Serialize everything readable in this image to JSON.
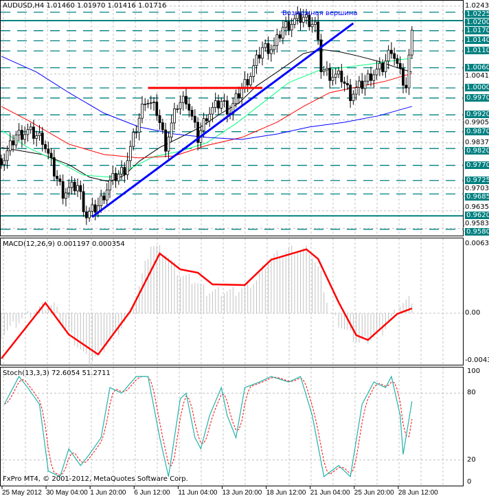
{
  "header": {
    "symbol_line": "AUDUSD,H4  1.01460 1.01970 1.01416 1.01716"
  },
  "annotation": "Возможная вершина",
  "copyright": "FxPro MT4, © 2001-2012, MetaQuotes Software Corp.",
  "colors": {
    "level_line": "#008080",
    "candle": "#000000",
    "trendline": "#0000ff",
    "resistance": "#ff0000",
    "ma_black": "#000000",
    "ma_green": "#00ff7f",
    "ma_red": "#ff0000",
    "ma_blue": "#0000ff",
    "macd_hist": "#c0c0c0",
    "macd_signal": "#ff0000",
    "stoch_main": "#20b2aa",
    "stoch_signal": "#ff0000"
  },
  "chart_data": [
    {
      "type": "candlestick",
      "title": "AUDUSD,H4",
      "ylim": [
        0.9583,
        1.0243
      ],
      "x_tick_labels": [
        "25 May 2012",
        "30 May 04:00",
        "1 Jun 20:00",
        "6 Jun 12:00",
        "11 Jun 04:00",
        "13 Jun 20:00",
        "18 Jun 12:00",
        "21 Jun 04:00",
        "25 Jun 20:00",
        "28 Jun 12:00"
      ],
      "y_tick_labels": [
        "1.02430",
        "1.00410",
        "0.99050",
        "0.98370",
        "0.97030",
        "0.96350",
        "0.95830"
      ],
      "level_labels": [
        {
          "text": "1.02250",
          "value": 1.0225,
          "style": "dashed"
        },
        {
          "text": "1.02000",
          "value": 1.02,
          "style": "solid"
        },
        {
          "text": "1.01700",
          "value": 1.017,
          "style": "dashed"
        },
        {
          "text": "1.01400",
          "value": 1.014,
          "style": "dashed"
        },
        {
          "text": "1.01100",
          "value": 1.011,
          "style": "dashed"
        },
        {
          "text": "1.00600",
          "value": 1.006,
          "style": "dashed"
        },
        {
          "text": "1.00000",
          "value": 1.0,
          "style": "dashed"
        },
        {
          "text": "0.99700",
          "value": 0.997,
          "style": "dashed"
        },
        {
          "text": "0.99200",
          "value": 0.992,
          "style": "dashed"
        },
        {
          "text": "0.98700",
          "value": 0.987,
          "style": "dashed"
        },
        {
          "text": "0.98200",
          "value": 0.982,
          "style": "dashed"
        },
        {
          "text": "0.97700",
          "value": 0.977,
          "style": "dashed"
        },
        {
          "text": "0.97250",
          "value": 0.9725,
          "style": "dashed"
        },
        {
          "text": "0.96850",
          "value": 0.9685,
          "style": "dashed"
        },
        {
          "text": "0.96200",
          "value": 0.962,
          "style": "solid"
        },
        {
          "text": "0.95800",
          "value": 0.958,
          "style": "dashed"
        }
      ],
      "close_path": [
        [
          1,
          0.979
        ],
        [
          5,
          0.986
        ],
        [
          9,
          0.987
        ],
        [
          14,
          0.985
        ],
        [
          18,
          0.975
        ],
        [
          21,
          0.969
        ],
        [
          26,
          0.971
        ],
        [
          29,
          0.962
        ],
        [
          33,
          0.965
        ],
        [
          37,
          0.972
        ],
        [
          42,
          0.976
        ],
        [
          46,
          0.988
        ],
        [
          49,
          0.997
        ],
        [
          53,
          0.993
        ],
        [
          56,
          0.983
        ],
        [
          60,
          0.995
        ],
        [
          63,
          0.997
        ],
        [
          67,
          0.985
        ],
        [
          70,
          0.992
        ],
        [
          75,
          0.996
        ],
        [
          78,
          0.993
        ],
        [
          82,
          1.0
        ],
        [
          85,
          1.004
        ],
        [
          89,
          1.012
        ],
        [
          93,
          1.012
        ],
        [
          96,
          1.018
        ],
        [
          100,
          1.02
        ],
        [
          103,
          1.021
        ],
        [
          107,
          1.019
        ],
        [
          109,
          1.006
        ],
        [
          112,
          1.004
        ],
        [
          116,
          1.003
        ],
        [
          119,
          0.998
        ],
        [
          123,
          1.001
        ],
        [
          126,
          1.004
        ],
        [
          130,
          1.006
        ],
        [
          133,
          1.012
        ],
        [
          136,
          1.004
        ],
        [
          138,
          1.0
        ],
        [
          140,
          1.01716
        ]
      ],
      "moving_averages": [
        {
          "color": "black",
          "points": [
            [
              0,
              0.9823
            ],
            [
              14,
              0.9802
            ],
            [
              23,
              0.9772
            ],
            [
              30,
              0.9735
            ],
            [
              37,
              0.9721
            ],
            [
              42,
              0.9741
            ],
            [
              47,
              0.9782
            ],
            [
              54,
              0.9823
            ],
            [
              61,
              0.9853
            ],
            [
              68,
              0.9884
            ],
            [
              75,
              0.9925
            ],
            [
              81,
              0.9955
            ],
            [
              87,
              1.0006
            ],
            [
              94,
              1.0047
            ],
            [
              103,
              1.0102
            ],
            [
              109,
              1.0114
            ],
            [
              115,
              1.0108
            ],
            [
              122,
              1.0094
            ],
            [
              129,
              1.0078
            ],
            [
              136,
              1.0057
            ],
            [
              140,
              1.0047
            ]
          ]
        },
        {
          "color": "green",
          "points": [
            [
              0,
              0.9874
            ],
            [
              9,
              0.9823
            ],
            [
              19,
              0.9782
            ],
            [
              28,
              0.9741
            ],
            [
              37,
              0.9735
            ],
            [
              44,
              0.9761
            ],
            [
              52,
              0.9796
            ],
            [
              61,
              0.9812
            ],
            [
              70,
              0.9837
            ],
            [
              80,
              0.9894
            ],
            [
              89,
              0.9955
            ],
            [
              98,
              1.0016
            ],
            [
              108,
              1.0051
            ],
            [
              117,
              1.0061
            ],
            [
              126,
              1.0071
            ],
            [
              136,
              1.0084
            ],
            [
              140,
              1.0088
            ]
          ]
        },
        {
          "color": "red",
          "points": [
            [
              0,
              0.9945
            ],
            [
              9,
              0.9904
            ],
            [
              23,
              0.9833
            ],
            [
              35,
              0.9802
            ],
            [
              47,
              0.9792
            ],
            [
              59,
              0.9798
            ],
            [
              70,
              0.9829
            ],
            [
              82,
              0.9853
            ],
            [
              94,
              0.9898
            ],
            [
              103,
              0.9945
            ],
            [
              112,
              0.9986
            ],
            [
              122,
              1.0004
            ],
            [
              131,
              1.002
            ],
            [
              140,
              1.0043
            ]
          ]
        },
        {
          "color": "blue",
          "points": [
            [
              0,
              1.0094
            ],
            [
              12,
              1.0047
            ],
            [
              23,
              0.9986
            ],
            [
              35,
              0.9925
            ],
            [
              47,
              0.9884
            ],
            [
              59,
              0.9863
            ],
            [
              70,
              0.9853
            ],
            [
              82,
              0.9847
            ],
            [
              94,
              0.9863
            ],
            [
              105,
              0.9884
            ],
            [
              117,
              0.9898
            ],
            [
              129,
              0.9918
            ],
            [
              140,
              0.9945
            ]
          ]
        }
      ],
      "trendline": {
        "from": [
          31,
          0.9617
        ],
        "to": [
          120,
          1.0192
        ]
      },
      "resistance_line": {
        "from": [
          50,
          1.0
        ],
        "to": [
          89,
          1.0
        ],
        "value": 1.0
      }
    },
    {
      "type": "macd",
      "label": "MACD(12,26,9) 0.001197 0.000354",
      "ylim": [
        -0.00436,
        0.00635
      ],
      "y_tick_labels": [
        "0.00635",
        "0.00",
        "-0.00436"
      ],
      "histogram": [
        [
          0,
          -0.002
        ],
        [
          7,
          -0.0005
        ],
        [
          14,
          0.0006
        ],
        [
          18,
          0.0008
        ],
        [
          21,
          -0.001
        ],
        [
          30,
          -0.0045
        ],
        [
          39,
          -0.002
        ],
        [
          44,
          0
        ],
        [
          47,
          0.0025
        ],
        [
          51,
          0.0063
        ],
        [
          56,
          0.0055
        ],
        [
          61,
          0.0035
        ],
        [
          66,
          0.003
        ],
        [
          70,
          0.002
        ],
        [
          80,
          0.002
        ],
        [
          87,
          0.003
        ],
        [
          91,
          0.005
        ],
        [
          98,
          0.0058
        ],
        [
          105,
          0.0058
        ],
        [
          109,
          0.0035
        ],
        [
          112,
          0
        ],
        [
          117,
          -0.0015
        ],
        [
          122,
          -0.0027
        ],
        [
          129,
          -0.002
        ],
        [
          133,
          -0.0005
        ],
        [
          136,
          0.0008
        ],
        [
          140,
          0.0013
        ]
      ],
      "signal": [
        [
          0,
          -0.00415
        ],
        [
          15,
          0.00094
        ],
        [
          23,
          -0.00195
        ],
        [
          33,
          -0.00377
        ],
        [
          44,
          0.00019
        ],
        [
          54,
          0.00547
        ],
        [
          61,
          0.00402
        ],
        [
          67,
          0.00371
        ],
        [
          72,
          0.00264
        ],
        [
          83,
          0.00258
        ],
        [
          92,
          0.0049
        ],
        [
          104,
          0.00585
        ],
        [
          108,
          0.00497
        ],
        [
          115,
          0.001
        ],
        [
          121,
          -0.00201
        ],
        [
          125,
          -0.00245
        ],
        [
          135,
          -6e-05
        ],
        [
          140,
          0.00044
        ]
      ]
    },
    {
      "type": "stochastic",
      "label": "Stoch(13,3,3) 72.6054 51.2711",
      "ylim": [
        0,
        100
      ],
      "y_tick_labels": [
        "100",
        "80",
        "20",
        "0"
      ],
      "main": [
        [
          1,
          70
        ],
        [
          6,
          95
        ],
        [
          9,
          85
        ],
        [
          13,
          70
        ],
        [
          16,
          10
        ],
        [
          20,
          5
        ],
        [
          23,
          30
        ],
        [
          27,
          15
        ],
        [
          30,
          25
        ],
        [
          34,
          40
        ],
        [
          37,
          85
        ],
        [
          41,
          80
        ],
        [
          46,
          95
        ],
        [
          50,
          95
        ],
        [
          54,
          40
        ],
        [
          57,
          5
        ],
        [
          61,
          75
        ],
        [
          63,
          80
        ],
        [
          66,
          40
        ],
        [
          68,
          30
        ],
        [
          71,
          60
        ],
        [
          75,
          85
        ],
        [
          77,
          60
        ],
        [
          80,
          40
        ],
        [
          83,
          85
        ],
        [
          88,
          90
        ],
        [
          92,
          95
        ],
        [
          98,
          90
        ],
        [
          102,
          95
        ],
        [
          106,
          60
        ],
        [
          110,
          5
        ],
        [
          115,
          15
        ],
        [
          119,
          5
        ],
        [
          123,
          70
        ],
        [
          127,
          90
        ],
        [
          131,
          85
        ],
        [
          133,
          95
        ],
        [
          136,
          60
        ],
        [
          137,
          25
        ],
        [
          140,
          72.6
        ]
      ]
    }
  ]
}
